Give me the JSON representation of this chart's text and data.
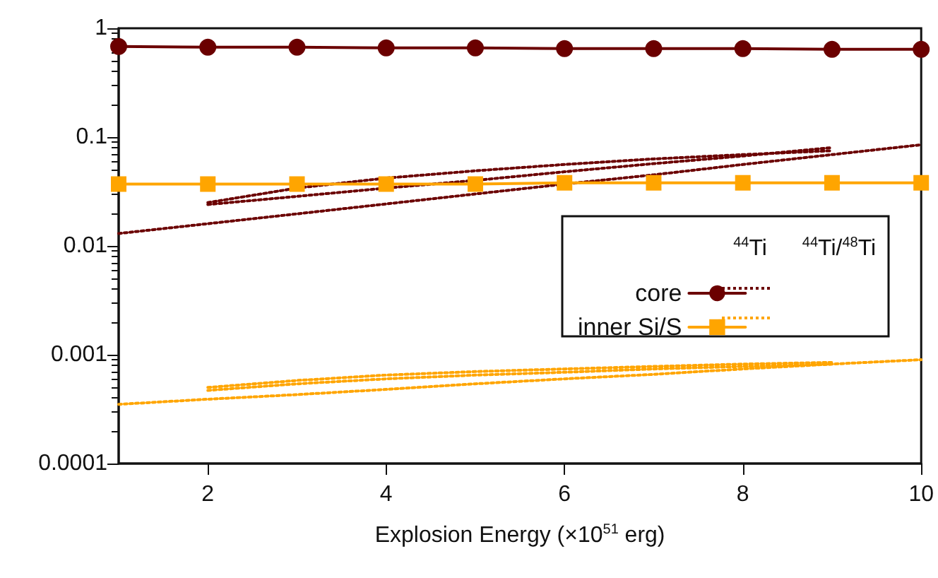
{
  "chart_data": {
    "type": "line",
    "xlabel": "Explosion Energy (×10$^{51}$ erg)",
    "annotations": [
      "$^{44}$Ti",
      "$^{44}$Ti/$^{48}$Ti"
    ],
    "x": [
      1,
      2,
      3,
      4,
      5,
      6,
      7,
      8,
      9,
      10
    ],
    "series": [
      {
        "name": "core",
        "color": "#6b0000",
        "marker": "circle",
        "line_style": "solid",
        "values": [
          0.68,
          0.67,
          0.67,
          0.66,
          0.66,
          0.65,
          0.65,
          0.65,
          0.64,
          0.64
        ]
      },
      {
        "name": "inner Si/S",
        "color": "#ffa500",
        "marker": "square",
        "line_style": "solid",
        "values": [
          0.037,
          0.037,
          0.037,
          0.037,
          0.037,
          0.038,
          0.038,
          0.038,
          0.038,
          0.038
        ]
      },
      {
        "color": "#6b0000",
        "marker": "none",
        "line_style": "dotted",
        "values": [
          0.013,
          0.016,
          0.0197,
          0.0243,
          0.03,
          0.037,
          0.045,
          0.056,
          0.069,
          0.085
        ]
      },
      {
        "color": "#6b0000",
        "marker": "none",
        "line_style": "dotted",
        "x": [
          2,
          3,
          4,
          5,
          6,
          7,
          8,
          9
        ],
        "values": [
          0.024,
          0.0285,
          0.034,
          0.04,
          0.048,
          0.057,
          0.067,
          0.08
        ]
      },
      {
        "color": "#6b0000",
        "marker": "none",
        "line_style": "dotted",
        "x": [
          2,
          3,
          4,
          5,
          6,
          7,
          8,
          9
        ],
        "values": [
          0.025,
          0.034,
          0.042,
          0.049,
          0.056,
          0.063,
          0.069,
          0.075
        ]
      },
      {
        "color": "#ffa500",
        "marker": "none",
        "line_style": "dotted",
        "values": [
          0.00035,
          0.00039,
          0.00043,
          0.00048,
          0.00054,
          0.0006,
          0.00066,
          0.00074,
          0.00082,
          0.0009
        ]
      },
      {
        "color": "#ffa500",
        "marker": "none",
        "line_style": "dotted",
        "x": [
          2,
          3,
          4,
          5,
          6,
          7,
          8,
          9
        ],
        "values": [
          0.0005,
          0.00058,
          0.00065,
          0.0007,
          0.00074,
          0.00078,
          0.00082,
          0.00085
        ]
      },
      {
        "color": "#ffa500",
        "marker": "none",
        "line_style": "dotted",
        "x": [
          2,
          3,
          4,
          5,
          6,
          7,
          8,
          9
        ],
        "values": [
          0.00047,
          0.00054,
          0.0006,
          0.00065,
          0.00069,
          0.00074,
          0.00078,
          0.00082
        ]
      }
    ],
    "xlim": [
      1,
      10
    ],
    "xticks": [
      2,
      4,
      6,
      8,
      10
    ],
    "ylim": [
      0.0001,
      1
    ],
    "yticks": [
      0.0001,
      0.001,
      0.01,
      0.1,
      1
    ],
    "log": "y",
    "grid": false,
    "legend": "right"
  }
}
